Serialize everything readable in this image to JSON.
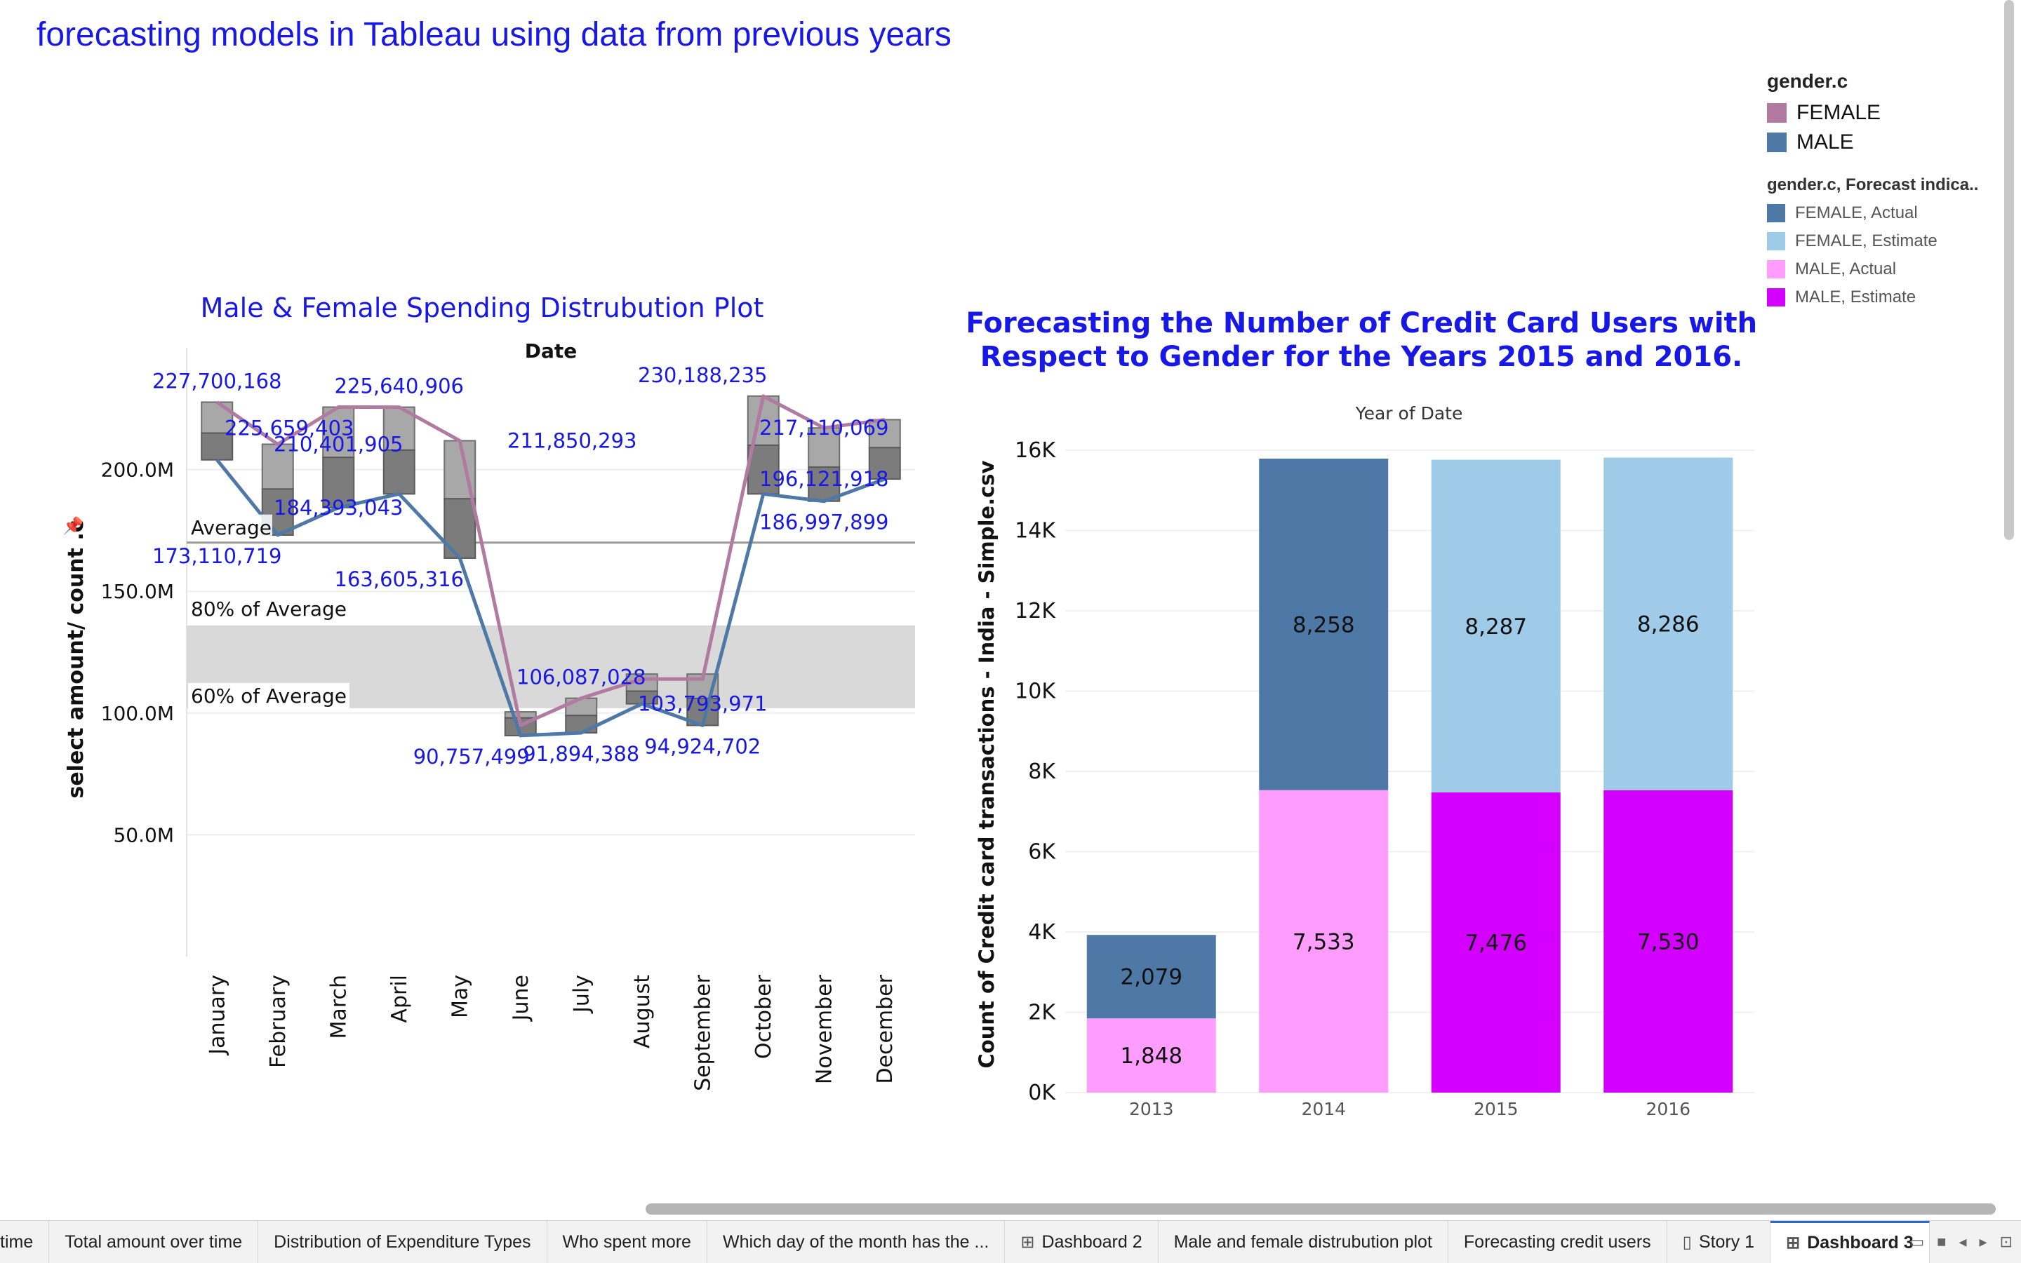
{
  "dashboard": {
    "title": "forecasting models in Tableau using data from previous years"
  },
  "legend": {
    "title1": "gender.c",
    "items1": [
      {
        "label": "FEMALE",
        "color": "#b07aa1"
      },
      {
        "label": "MALE",
        "color": "#4e79a7"
      }
    ],
    "title2": "gender.c, Forecast indica..",
    "items2": [
      {
        "label": "FEMALE, Actual",
        "color": "#4e79a7"
      },
      {
        "label": "FEMALE, Estimate",
        "color": "#a0cbe8"
      },
      {
        "label": "MALE, Actual",
        "color": "#ff9dff"
      },
      {
        "label": "MALE, Estimate",
        "color": "#d400ff"
      }
    ]
  },
  "chart_data": [
    {
      "type": "line",
      "title": "Male & Female Spending Distrubution Plot",
      "xlabel": "Date",
      "ylabel": "select amount/ count .c",
      "categories": [
        "January",
        "February",
        "March",
        "April",
        "May",
        "June",
        "July",
        "August",
        "September",
        "October",
        "November",
        "December"
      ],
      "yticks": [
        "50.0M",
        "100.0M",
        "150.0M",
        "200.0M"
      ],
      "ylim": [
        0,
        250000000
      ],
      "series": [
        {
          "name": "FEMALE",
          "color": "#b07aa1",
          "values": [
            227700168,
            210401905,
            225659403,
            225640906,
            211850293,
            95000000,
            106087028,
            114000000,
            114000000,
            230188235,
            217110069,
            220500000
          ]
        },
        {
          "name": "MALE",
          "color": "#4e79a7",
          "values": [
            204000000,
            173110719,
            184393043,
            190000000,
            163605316,
            90757499,
            91894388,
            103793971,
            94924702,
            190000000,
            186997899,
            196121918
          ]
        }
      ],
      "box_bands": [
        {
          "low": 204000000,
          "mid": 215000000,
          "high": 227700168
        },
        {
          "low": 173110719,
          "mid": 192000000,
          "high": 210401905
        },
        {
          "low": 184393043,
          "mid": 205000000,
          "high": 225659403
        },
        {
          "low": 190000000,
          "mid": 208000000,
          "high": 225640906
        },
        {
          "low": 163605316,
          "mid": 188000000,
          "high": 211850293
        },
        {
          "low": 90757499,
          "mid": 98000000,
          "high": 100500000
        },
        {
          "low": 91894388,
          "mid": 99000000,
          "high": 106087028
        },
        {
          "low": 103793971,
          "mid": 109000000,
          "high": 116000000
        },
        {
          "low": 94924702,
          "mid": 106000000,
          "high": 116000000
        },
        {
          "low": 190000000,
          "mid": 210000000,
          "high": 230188235
        },
        {
          "low": 186997899,
          "mid": 201000000,
          "high": 217110069
        },
        {
          "low": 196121918,
          "mid": 209000000,
          "high": 220500000
        }
      ],
      "data_labels": [
        {
          "text": "227,700,168",
          "month": 0,
          "value": 227700168,
          "anchor": "above"
        },
        {
          "text": "173,110,719",
          "month": 0,
          "value": 173110719,
          "anchor": "below"
        },
        {
          "text": "225,659,403",
          "month": 2,
          "value": 225659403,
          "anchor": "belowleft"
        },
        {
          "text": "210,401,905",
          "month": 2,
          "value": 210401905,
          "anchor": "mid"
        },
        {
          "text": "184,393,043",
          "month": 2,
          "value": 184393043,
          "anchor": "mid"
        },
        {
          "text": "225,640,906",
          "month": 3,
          "value": 225640906,
          "anchor": "above"
        },
        {
          "text": "163,605,316",
          "month": 3,
          "value": 163605316,
          "anchor": "below"
        },
        {
          "text": "211,850,293",
          "month": 4,
          "value": 211850293,
          "anchor": "right"
        },
        {
          "text": "90,757,499",
          "month": 5,
          "value": 90757499,
          "anchor": "belowleft"
        },
        {
          "text": "91,894,388",
          "month": 6,
          "value": 91894388,
          "anchor": "below"
        },
        {
          "text": "106,087,028",
          "month": 6,
          "value": 106087028,
          "anchor": "above"
        },
        {
          "text": "103,793,971",
          "month": 8,
          "value": 103793971,
          "anchor": "mid"
        },
        {
          "text": "94,924,702",
          "month": 8,
          "value": 94924702,
          "anchor": "below"
        },
        {
          "text": "230,188,235",
          "month": 8,
          "value": 230188235,
          "anchor": "above"
        },
        {
          "text": "217,110,069",
          "month": 10,
          "value": 217110069,
          "anchor": "mid"
        },
        {
          "text": "196,121,918",
          "month": 10,
          "value": 196121918,
          "anchor": "mid"
        },
        {
          "text": "186,997,899",
          "month": 10,
          "value": 186997899,
          "anchor": "below"
        }
      ],
      "reference_line": {
        "label": "Average",
        "value": 170000000
      },
      "reference_band": {
        "label_80": "80% of Average",
        "label_60": "60% of Average",
        "low": 102000000,
        "high": 136000000
      }
    },
    {
      "type": "bar",
      "stacked": true,
      "title": "Forecasting the Number of Credit Card Users with Respect to Gender for the Years 2015 and 2016.",
      "title_lines": [
        "Forecasting the Number of Credit Card Users with",
        "Respect to Gender for the Years 2015 and 2016."
      ],
      "xlabel": "Year of Date",
      "ylabel": "Count of Credit card transactions - India - Simple.csv",
      "categories": [
        "2013",
        "2014",
        "2015",
        "2016"
      ],
      "yticks": [
        "0K",
        "2K",
        "4K",
        "6K",
        "8K",
        "10K",
        "12K",
        "14K",
        "16K"
      ],
      "ylim": [
        0,
        16000
      ],
      "stacks": [
        {
          "bottom": {
            "value": 1848,
            "label": "1,848",
            "color": "#ff9dff"
          },
          "top": {
            "value": 2079,
            "label": "2,079",
            "color": "#4e79a7"
          }
        },
        {
          "bottom": {
            "value": 7533,
            "label": "7,533",
            "color": "#ff9dff"
          },
          "top": {
            "value": 8258,
            "label": "8,258",
            "color": "#4e79a7"
          }
        },
        {
          "bottom": {
            "value": 7476,
            "label": "7,476",
            "color": "#d400ff"
          },
          "top": {
            "value": 8287,
            "label": "8,287",
            "color": "#a0cbe8"
          }
        },
        {
          "bottom": {
            "value": 7530,
            "label": "7,530",
            "color": "#d400ff"
          },
          "top": {
            "value": 8286,
            "label": "8,286",
            "color": "#a0cbe8"
          }
        }
      ]
    }
  ],
  "tabs": [
    {
      "label": "time",
      "icon": "",
      "active": false
    },
    {
      "label": "Total amount over time",
      "icon": "",
      "active": false
    },
    {
      "label": "Distribution of Expenditure Types",
      "icon": "",
      "active": false
    },
    {
      "label": "Who spent more",
      "icon": "",
      "active": false
    },
    {
      "label": "Which day of the month has the ...",
      "icon": "",
      "active": false
    },
    {
      "label": "Dashboard 2",
      "icon": "dashboard-icon",
      "active": false
    },
    {
      "label": "Male and female distrubution plot",
      "icon": "",
      "active": false
    },
    {
      "label": "Forecasting credit users",
      "icon": "",
      "active": false
    },
    {
      "label": "Story 1",
      "icon": "story-icon",
      "active": false
    },
    {
      "label": "Dashboard 3",
      "icon": "dashboard-icon",
      "active": true
    }
  ]
}
